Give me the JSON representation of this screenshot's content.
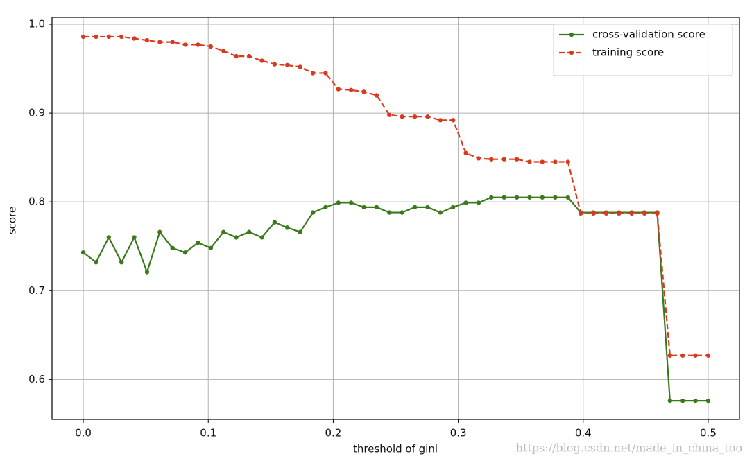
{
  "chart_data": {
    "type": "line",
    "xlabel": "threshold of gini",
    "ylabel": "score",
    "x": [
      0,
      0.0102,
      0.0204,
      0.0306,
      0.0408,
      0.051,
      0.0612,
      0.0714,
      0.0816,
      0.0918,
      0.102,
      0.1122,
      0.1224,
      0.1327,
      0.1429,
      0.1531,
      0.1633,
      0.1735,
      0.1837,
      0.1939,
      0.2041,
      0.2143,
      0.2245,
      0.2347,
      0.2449,
      0.2551,
      0.2653,
      0.2755,
      0.2857,
      0.2959,
      0.3061,
      0.3163,
      0.3265,
      0.3367,
      0.3469,
      0.3571,
      0.3673,
      0.3776,
      0.3878,
      0.398,
      0.4082,
      0.4184,
      0.4286,
      0.4388,
      0.449,
      0.4592,
      0.4694,
      0.4796,
      0.4898,
      0.5
    ],
    "series": [
      {
        "name": "cross-validation score",
        "color": "#3a7a1a",
        "linestyle": "solid",
        "values": [
          0.743,
          0.732,
          0.76,
          0.732,
          0.76,
          0.721,
          0.766,
          0.748,
          0.743,
          0.754,
          0.748,
          0.766,
          0.76,
          0.766,
          0.76,
          0.777,
          0.771,
          0.766,
          0.788,
          0.794,
          0.799,
          0.799,
          0.794,
          0.794,
          0.788,
          0.788,
          0.794,
          0.794,
          0.788,
          0.794,
          0.799,
          0.799,
          0.805,
          0.805,
          0.805,
          0.805,
          0.805,
          0.805,
          0.805,
          0.788,
          0.788,
          0.788,
          0.788,
          0.788,
          0.788,
          0.788,
          0.576,
          0.576,
          0.576,
          0.576
        ]
      },
      {
        "name": "training score",
        "color": "#d9391e",
        "linestyle": "dashed",
        "values": [
          0.986,
          0.986,
          0.986,
          0.986,
          0.984,
          0.982,
          0.98,
          0.98,
          0.977,
          0.977,
          0.975,
          0.97,
          0.964,
          0.964,
          0.959,
          0.955,
          0.954,
          0.952,
          0.945,
          0.945,
          0.927,
          0.926,
          0.924,
          0.92,
          0.898,
          0.896,
          0.896,
          0.896,
          0.892,
          0.892,
          0.855,
          0.849,
          0.848,
          0.848,
          0.848,
          0.845,
          0.845,
          0.845,
          0.845,
          0.787,
          0.787,
          0.787,
          0.787,
          0.787,
          0.787,
          0.787,
          0.627,
          0.627,
          0.627,
          0.627
        ]
      }
    ],
    "xlim": [
      -0.025,
      0.525
    ],
    "ylim": [
      0.555,
      1.0078
    ],
    "xticks": [
      {
        "value": 0,
        "label": "0.0"
      },
      0.1,
      0.2,
      0.3,
      0.4,
      0.5
    ],
    "yticks": [
      0.6,
      0.7,
      0.8,
      0.9,
      {
        "value": 1.0,
        "label": "1.0"
      }
    ],
    "grid": true,
    "legend": "upper right",
    "annotation": "https://blog.csdn.net/made_in_china_too"
  }
}
